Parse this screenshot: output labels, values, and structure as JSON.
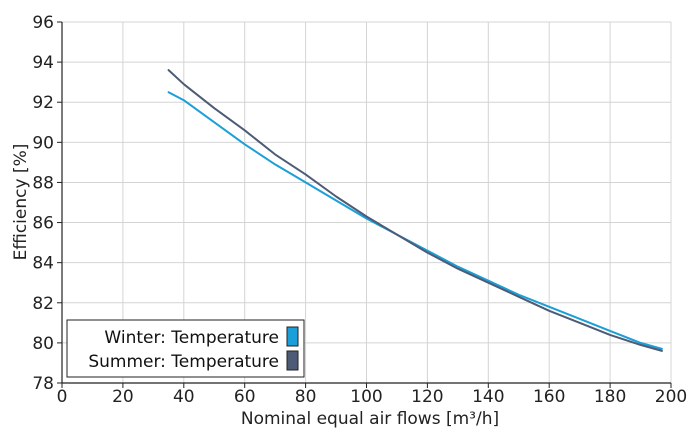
{
  "chart_data": {
    "type": "line",
    "title": "",
    "xlabel": "Nominal equal air flows [m³/h]",
    "ylabel": "Efficiency [%]",
    "xlim": [
      0,
      200
    ],
    "ylim": [
      78,
      96
    ],
    "x_ticks": [
      0,
      20,
      40,
      60,
      80,
      100,
      120,
      140,
      160,
      180,
      200
    ],
    "y_ticks": [
      78,
      80,
      82,
      84,
      86,
      88,
      90,
      92,
      94,
      96
    ],
    "x_tick_labels": [
      "0",
      "20",
      "40",
      "60",
      "80",
      "100",
      "120",
      "140",
      "160",
      "180",
      "200"
    ],
    "y_tick_labels": [
      "78",
      "80",
      "82",
      "84",
      "86",
      "88",
      "90",
      "92",
      "94",
      "96"
    ],
    "grid": true,
    "legend_position": "bottom-left",
    "series": [
      {
        "name": "Winter: Temperature",
        "color": "#1a9fd8",
        "x": [
          35,
          40,
          50,
          60,
          70,
          80,
          90,
          100,
          110,
          120,
          130,
          140,
          150,
          160,
          170,
          180,
          190,
          197
        ],
        "y": [
          92.5,
          92.1,
          91.0,
          89.9,
          88.9,
          88.0,
          87.1,
          86.2,
          85.4,
          84.6,
          83.8,
          83.1,
          82.4,
          81.8,
          81.2,
          80.6,
          80.0,
          79.7
        ]
      },
      {
        "name": "Summer: Temperature",
        "color": "#4d5b76",
        "x": [
          35,
          40,
          50,
          60,
          70,
          80,
          90,
          100,
          110,
          120,
          130,
          140,
          150,
          160,
          170,
          180,
          190,
          197
        ],
        "y": [
          93.6,
          92.9,
          91.7,
          90.6,
          89.4,
          88.4,
          87.3,
          86.3,
          85.4,
          84.5,
          83.7,
          83.0,
          82.3,
          81.6,
          81.0,
          80.4,
          79.9,
          79.6
        ]
      }
    ]
  }
}
